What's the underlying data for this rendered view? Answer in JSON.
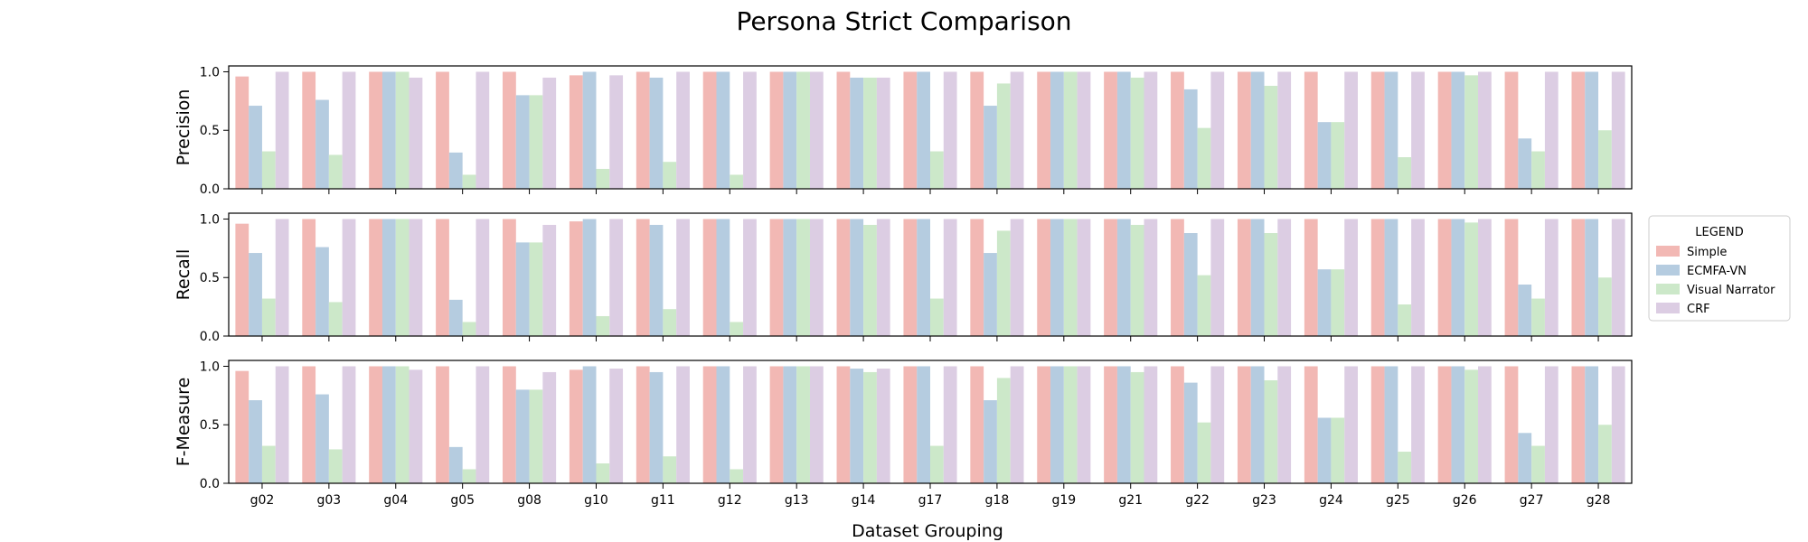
{
  "chart_data": {
    "type": "bar",
    "title": "Persona Strict Comparison",
    "xlabel": "Dataset Grouping",
    "legend": {
      "title": "LEGEND",
      "placement": "right",
      "entries": [
        "Simple",
        "ECMFA-VN",
        "Visual Narrator",
        "CRF"
      ]
    },
    "colors": {
      "Simple": "#f2b8b4",
      "ECMFA-VN": "#b5cce0",
      "Visual Narrator": "#cce8c9",
      "CRF": "#dccde3"
    },
    "categories": [
      "g02",
      "g03",
      "g04",
      "g05",
      "g08",
      "g10",
      "g11",
      "g12",
      "g13",
      "g14",
      "g17",
      "g18",
      "g19",
      "g21",
      "g22",
      "g23",
      "g24",
      "g25",
      "g26",
      "g27",
      "g28"
    ],
    "panels": [
      {
        "ylabel": "Precision",
        "ylim": [
          0,
          1.05
        ],
        "yticks": [
          "0.0",
          "0.5",
          "1.0"
        ],
        "series": [
          {
            "name": "Simple",
            "values": [
              0.96,
              1.0,
              1.0,
              1.0,
              1.0,
              0.97,
              1.0,
              1.0,
              1.0,
              1.0,
              1.0,
              1.0,
              1.0,
              1.0,
              1.0,
              1.0,
              1.0,
              1.0,
              1.0,
              1.0,
              1.0
            ]
          },
          {
            "name": "ECMFA-VN",
            "values": [
              0.71,
              0.76,
              1.0,
              0.31,
              0.8,
              1.0,
              0.95,
              1.0,
              1.0,
              0.95,
              1.0,
              0.71,
              1.0,
              1.0,
              0.85,
              1.0,
              0.57,
              1.0,
              1.0,
              0.43,
              1.0
            ]
          },
          {
            "name": "Visual Narrator",
            "values": [
              0.32,
              0.29,
              1.0,
              0.12,
              0.8,
              0.17,
              0.23,
              0.12,
              1.0,
              0.95,
              0.32,
              0.9,
              1.0,
              0.95,
              0.52,
              0.88,
              0.57,
              0.27,
              0.97,
              0.32,
              0.5
            ]
          },
          {
            "name": "CRF",
            "values": [
              1.0,
              1.0,
              0.95,
              1.0,
              0.95,
              0.97,
              1.0,
              1.0,
              1.0,
              0.95,
              1.0,
              1.0,
              1.0,
              1.0,
              1.0,
              1.0,
              1.0,
              1.0,
              1.0,
              1.0,
              1.0
            ]
          }
        ]
      },
      {
        "ylabel": "Recall",
        "ylim": [
          0,
          1.05
        ],
        "yticks": [
          "0.0",
          "0.5",
          "1.0"
        ],
        "series": [
          {
            "name": "Simple",
            "values": [
              0.96,
              1.0,
              1.0,
              1.0,
              1.0,
              0.98,
              1.0,
              1.0,
              1.0,
              1.0,
              1.0,
              1.0,
              1.0,
              1.0,
              1.0,
              1.0,
              1.0,
              1.0,
              1.0,
              1.0,
              1.0
            ]
          },
          {
            "name": "ECMFA-VN",
            "values": [
              0.71,
              0.76,
              1.0,
              0.31,
              0.8,
              1.0,
              0.95,
              1.0,
              1.0,
              1.0,
              1.0,
              0.71,
              1.0,
              1.0,
              0.88,
              1.0,
              0.57,
              1.0,
              1.0,
              0.44,
              1.0
            ]
          },
          {
            "name": "Visual Narrator",
            "values": [
              0.32,
              0.29,
              1.0,
              0.12,
              0.8,
              0.17,
              0.23,
              0.12,
              1.0,
              0.95,
              0.32,
              0.9,
              1.0,
              0.95,
              0.52,
              0.88,
              0.57,
              0.27,
              0.97,
              0.32,
              0.5
            ]
          },
          {
            "name": "CRF",
            "values": [
              1.0,
              1.0,
              1.0,
              1.0,
              0.95,
              1.0,
              1.0,
              1.0,
              1.0,
              1.0,
              1.0,
              1.0,
              1.0,
              1.0,
              1.0,
              1.0,
              1.0,
              1.0,
              1.0,
              1.0,
              1.0
            ]
          }
        ]
      },
      {
        "ylabel": "F-Measure",
        "ylim": [
          0,
          1.05
        ],
        "yticks": [
          "0.0",
          "0.5",
          "1.0"
        ],
        "series": [
          {
            "name": "Simple",
            "values": [
              0.96,
              1.0,
              1.0,
              1.0,
              1.0,
              0.97,
              1.0,
              1.0,
              1.0,
              1.0,
              1.0,
              1.0,
              1.0,
              1.0,
              1.0,
              1.0,
              1.0,
              1.0,
              1.0,
              1.0,
              1.0
            ]
          },
          {
            "name": "ECMFA-VN",
            "values": [
              0.71,
              0.76,
              1.0,
              0.31,
              0.8,
              1.0,
              0.95,
              1.0,
              1.0,
              0.98,
              1.0,
              0.71,
              1.0,
              1.0,
              0.86,
              1.0,
              0.56,
              1.0,
              1.0,
              0.43,
              1.0
            ]
          },
          {
            "name": "Visual Narrator",
            "values": [
              0.32,
              0.29,
              1.0,
              0.12,
              0.8,
              0.17,
              0.23,
              0.12,
              1.0,
              0.95,
              0.32,
              0.9,
              1.0,
              0.95,
              0.52,
              0.88,
              0.56,
              0.27,
              0.97,
              0.32,
              0.5
            ]
          },
          {
            "name": "CRF",
            "values": [
              1.0,
              1.0,
              0.97,
              1.0,
              0.95,
              0.98,
              1.0,
              1.0,
              1.0,
              0.98,
              1.0,
              1.0,
              1.0,
              1.0,
              1.0,
              1.0,
              1.0,
              1.0,
              1.0,
              1.0,
              1.0
            ]
          }
        ]
      }
    ]
  }
}
